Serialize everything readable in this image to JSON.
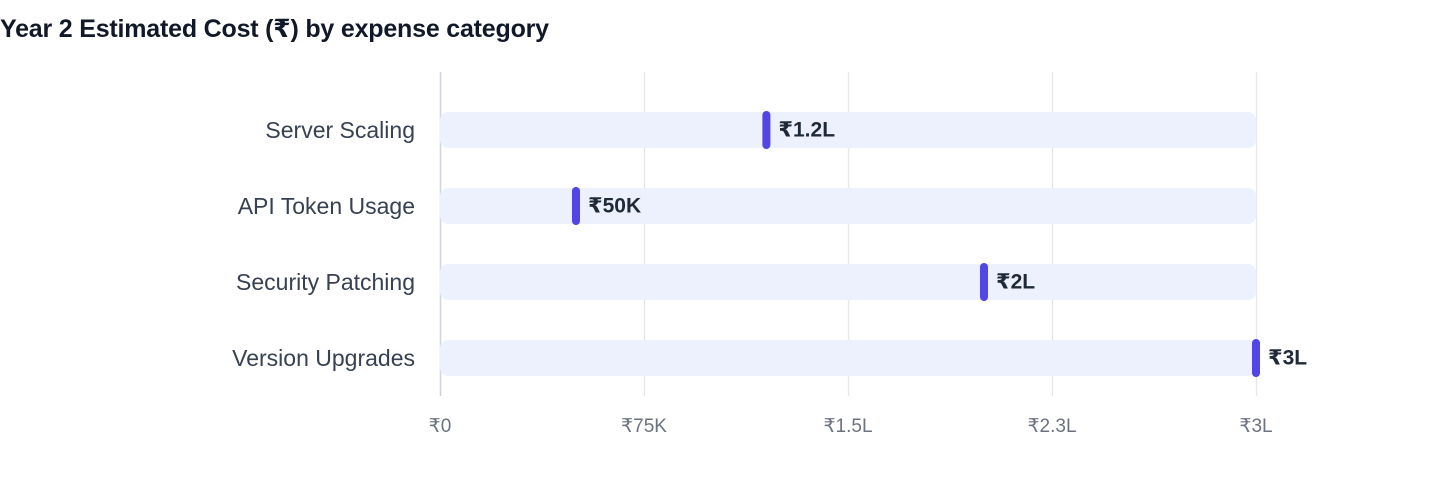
{
  "title": "Year 2 Estimated Cost (₹) by expense category",
  "colors": {
    "track": "#edf1fd",
    "marker": "#4f46e5",
    "grid": "#e5e7eb",
    "axis": "#d1d5db"
  },
  "chart_data": {
    "type": "bar",
    "title": "Year 2 Estimated Cost (₹) by expense category",
    "xlabel": "",
    "ylabel": "",
    "categories": [
      "Server Scaling",
      "API Token Usage",
      "Security Patching",
      "Version Upgrades"
    ],
    "values": [
      120000,
      50000,
      200000,
      300000
    ],
    "value_labels": [
      "₹1.2L",
      "₹50K",
      "₹2L",
      "₹3L"
    ],
    "xlim": [
      0,
      300000
    ],
    "x_ticks": [
      0,
      75000,
      150000,
      225000,
      300000
    ],
    "x_tick_labels": [
      "₹0",
      "₹75K",
      "₹1.5L",
      "₹2.3L",
      "₹3L"
    ],
    "grid": true,
    "orientation": "horizontal"
  }
}
